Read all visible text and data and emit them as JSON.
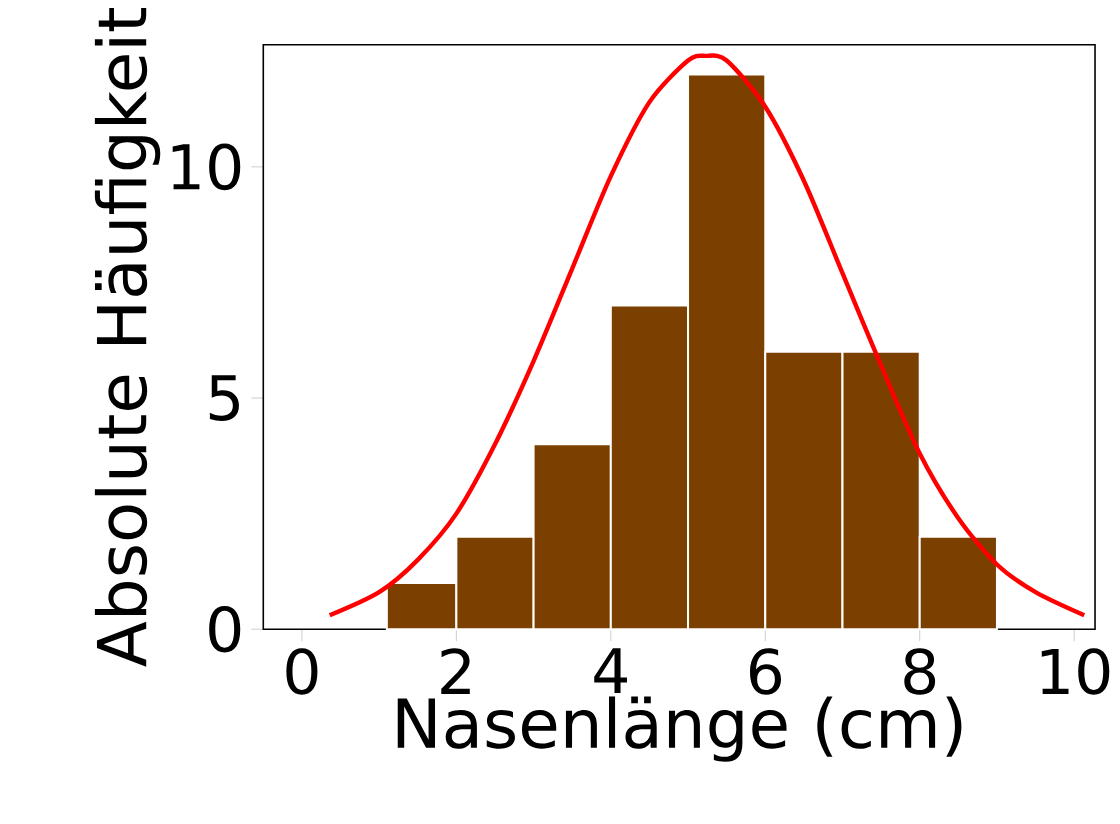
{
  "chart_data": {
    "type": "histogram",
    "xlabel": "Nasenlänge (cm)",
    "ylabel": "Absolute Häufigkeit",
    "xlim": [
      -0.5,
      10.27
    ],
    "ylim": [
      0,
      12.64
    ],
    "xticks": [
      0,
      2,
      4,
      6,
      8,
      10
    ],
    "yticks": [
      0,
      5,
      10
    ],
    "grid": false,
    "series": [
      {
        "type": "histogram",
        "color": "#7b3f00",
        "bins": [
          1.1,
          2,
          3,
          4,
          5,
          6,
          7,
          8,
          9
        ],
        "values": [
          1,
          2,
          4,
          7,
          12,
          6,
          6,
          2
        ]
      },
      {
        "type": "line",
        "color": "#ff0000",
        "marker": "none",
        "line_style": "solid",
        "x": [
          0.36,
          1,
          1.5,
          2,
          2.5,
          3,
          3.5,
          4,
          4.5,
          5,
          5.23,
          5.5,
          6,
          6.5,
          7,
          7.5,
          8,
          8.5,
          9,
          9.5,
          10.13
        ],
        "values": [
          0.3,
          0.8,
          1.5,
          2.5,
          4.0,
          5.8,
          7.8,
          9.8,
          11.4,
          12.3,
          12.4,
          12.3,
          11.3,
          9.7,
          7.7,
          5.7,
          3.8,
          2.4,
          1.4,
          0.8,
          0.3
        ]
      }
    ]
  }
}
